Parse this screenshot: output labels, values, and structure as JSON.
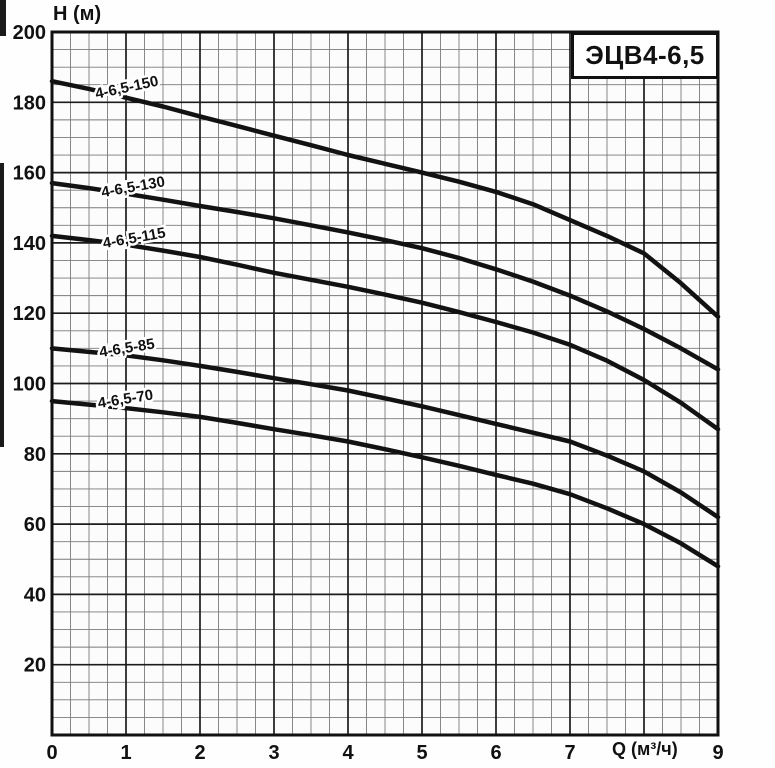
{
  "chart_data": {
    "type": "line",
    "title": "ЭЦВ4-6,5",
    "xlabel": "Q (м³/ч)",
    "ylabel": "H (м)",
    "xlim": [
      0,
      9
    ],
    "ylim": [
      0,
      200
    ],
    "x_major_step": 1,
    "x_minor_step": 0.25,
    "y_major_step": 20,
    "y_minor_step": 5,
    "grid": "on",
    "x_ticks": [
      0,
      1,
      2,
      3,
      4,
      5,
      6,
      7,
      9
    ],
    "y_ticks": [
      20,
      40,
      60,
      80,
      100,
      120,
      140,
      160,
      180,
      200
    ],
    "line_color": "#121212",
    "grid_major_color": "#1c1c1c",
    "grid_minor_color": "#7a7a7a",
    "plot_bg": "#fcfcfc",
    "series": [
      {
        "name": "4-6,5-150",
        "q": [
          0,
          0.5,
          1,
          1.5,
          2,
          2.5,
          3,
          3.5,
          4,
          4.5,
          5,
          5.5,
          6,
          6.5,
          7,
          7.5,
          8,
          8.5,
          9
        ],
        "h": [
          186,
          183.8,
          181.3,
          178.8,
          176,
          173.3,
          170.5,
          167.8,
          165,
          162.5,
          160,
          157.4,
          154.5,
          151,
          146.5,
          142,
          137,
          128.5,
          119
        ],
        "label_q": 0.6,
        "label_h": 181,
        "label_angle": -12
      },
      {
        "name": "4-6,5-130",
        "q": [
          0,
          0.5,
          1,
          1.5,
          2,
          2.5,
          3,
          3.5,
          4,
          4.5,
          5,
          5.5,
          6,
          6.5,
          7,
          7.5,
          8,
          8.5,
          9
        ],
        "h": [
          157,
          155.6,
          154,
          152.3,
          150.5,
          148.8,
          147,
          145,
          143,
          140.8,
          138.5,
          135.7,
          132.5,
          129,
          125,
          120.5,
          115.5,
          110,
          104
        ],
        "label_q": 0.68,
        "label_h": 153,
        "label_angle": -10
      },
      {
        "name": "4-6,5-115",
        "q": [
          0,
          0.5,
          1,
          1.5,
          2,
          2.5,
          3,
          3.5,
          4,
          4.5,
          5,
          5.5,
          6,
          6.5,
          7,
          7.5,
          8,
          8.5,
          9
        ],
        "h": [
          142,
          140.8,
          139.5,
          137.8,
          136,
          133.8,
          131.5,
          129.5,
          127.5,
          125.3,
          123,
          120.3,
          117.5,
          114.5,
          111,
          106.5,
          101,
          94.5,
          87
        ],
        "label_q": 0.7,
        "label_h": 138.5,
        "label_angle": -10
      },
      {
        "name": "4-6,5-85",
        "q": [
          0,
          0.5,
          1,
          1.5,
          2,
          2.5,
          3,
          3.5,
          4,
          4.5,
          5,
          5.5,
          6,
          6.5,
          7,
          7.5,
          8,
          8.5,
          9
        ],
        "h": [
          110,
          109,
          108,
          106.6,
          105,
          103.3,
          101.5,
          99.8,
          98,
          95.8,
          93.5,
          91,
          88.5,
          86,
          83.5,
          79.5,
          75,
          69,
          62
        ],
        "label_q": 0.65,
        "label_h": 107.5,
        "label_angle": -9
      },
      {
        "name": "4-6,5-70",
        "q": [
          0,
          0.5,
          1,
          1.5,
          2,
          2.5,
          3,
          3.5,
          4,
          4.5,
          5,
          5.5,
          6,
          6.5,
          7,
          7.5,
          8,
          8.5,
          9
        ],
        "h": [
          95,
          94,
          93,
          91.8,
          90.5,
          88.8,
          87,
          85.3,
          83.5,
          81.3,
          79,
          76.6,
          74,
          71.5,
          68.5,
          64.5,
          60,
          54.5,
          48
        ],
        "label_q": 0.63,
        "label_h": 93,
        "label_angle": -9
      }
    ]
  }
}
